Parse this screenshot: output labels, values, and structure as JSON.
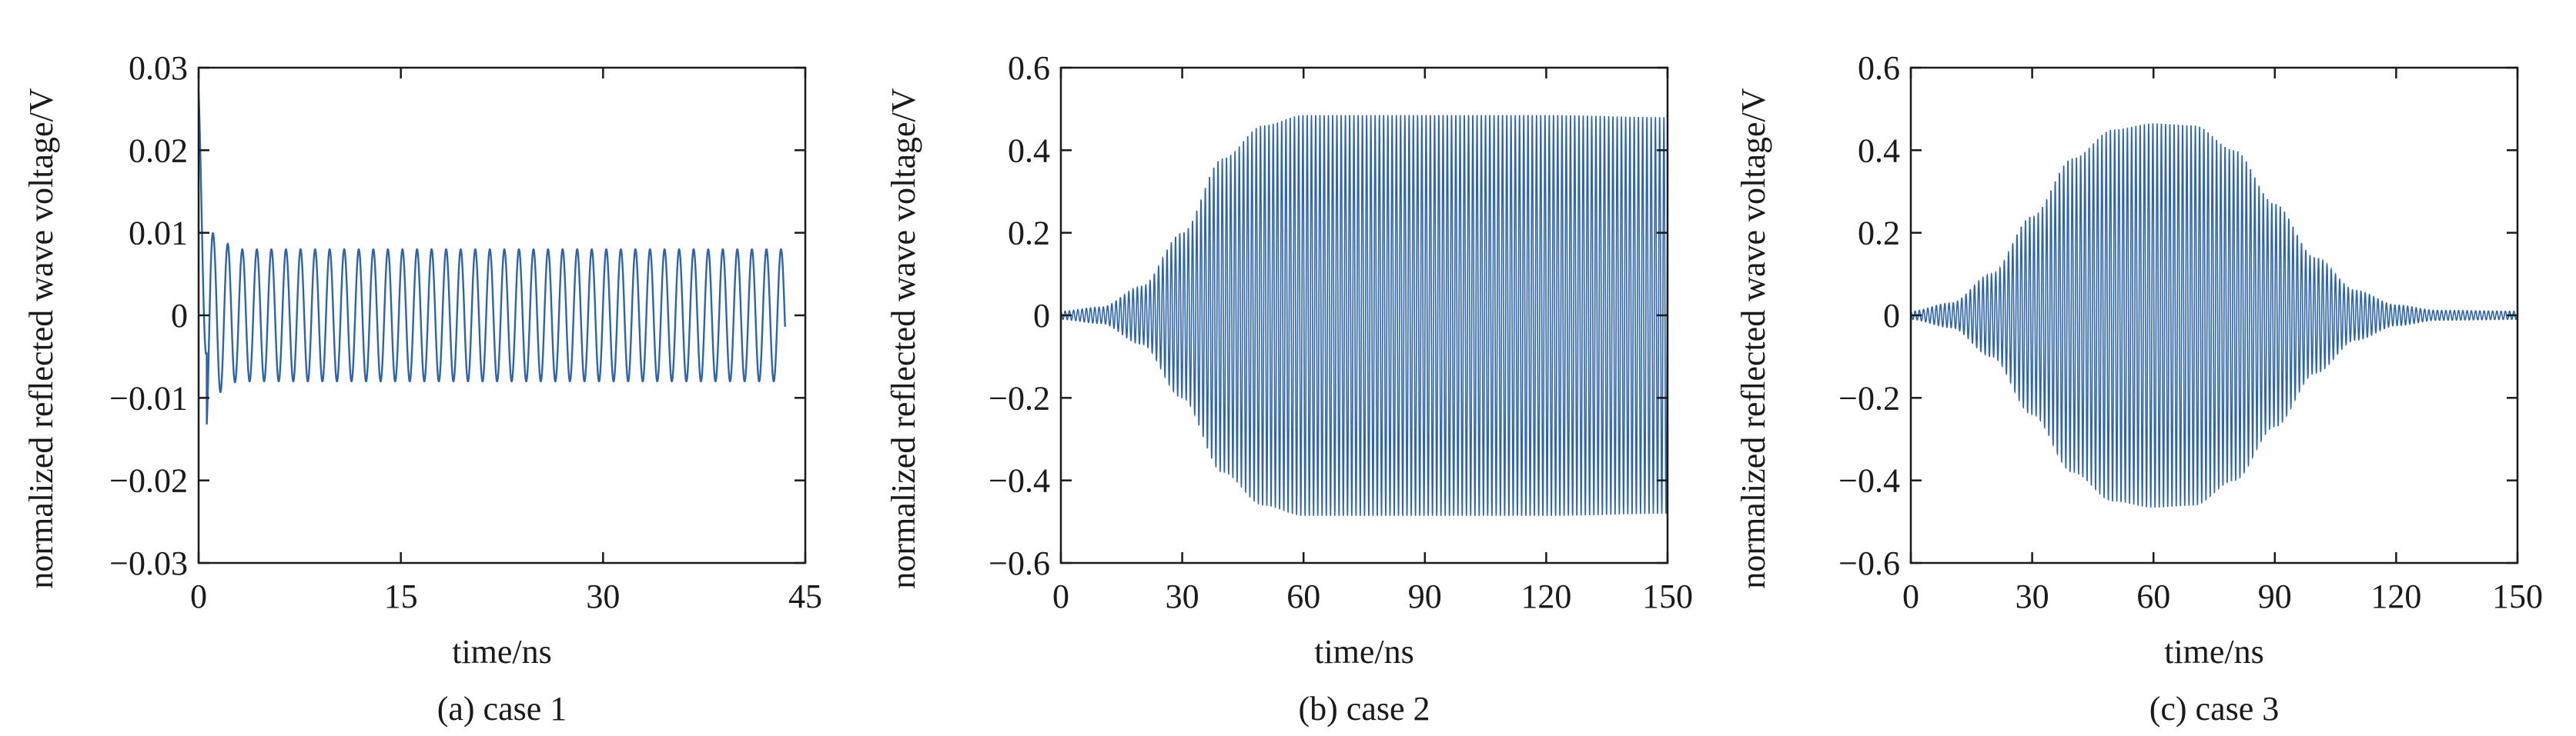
{
  "colors": {
    "line": "#2e64a8",
    "axis": "#1a1a1a"
  },
  "chart_data": [
    {
      "type": "line",
      "caption": "(a) case 1",
      "xlabel": "time/ns",
      "ylabel": "normalized reflected wave voltage/V",
      "xlim": [
        0,
        45
      ],
      "ylim": [
        -0.03,
        0.03
      ],
      "xticks": [
        0,
        15,
        30,
        45
      ],
      "xtick_labels": [
        "0",
        "15",
        "30",
        "45"
      ],
      "yticks": [
        -0.03,
        -0.02,
        -0.01,
        0,
        0.01,
        0.02,
        0.03
      ],
      "ytick_labels": [
        "−0.03",
        "−0.02",
        "−0.01",
        "0",
        "0.01",
        "0.02",
        "0.03"
      ],
      "x_end": 43.5,
      "signal": {
        "description": "initial spike then sustained sinusoidal oscillation",
        "period_ns": 1.08,
        "steady_amplitude": 0.0078,
        "initial_peak": 0.027,
        "initial_trough": -0.0145,
        "envelope": [
          [
            0,
            0.027
          ],
          [
            0.5,
            0.0145
          ],
          [
            1.2,
            0.0095
          ],
          [
            3,
            0.008
          ],
          [
            43.5,
            0.008
          ]
        ]
      }
    },
    {
      "type": "line",
      "caption": "(b) case 2",
      "xlabel": "time/ns",
      "ylabel": "normalized reflected wave voltage/V",
      "xlim": [
        0,
        150
      ],
      "ylim": [
        -0.6,
        0.6
      ],
      "xticks": [
        0,
        30,
        60,
        90,
        120,
        150
      ],
      "xtick_labels": [
        "0",
        "30",
        "60",
        "90",
        "120",
        "150"
      ],
      "yticks": [
        -0.6,
        -0.4,
        -0.2,
        0,
        0.2,
        0.4,
        0.6
      ],
      "ytick_labels": [
        "−0.6",
        "−0.4",
        "−0.2",
        "0",
        "0.2",
        "0.4",
        "0.6"
      ],
      "signal": {
        "description": "oscillation with amplitude growing then saturating",
        "period_ns": 1.05,
        "envelope": [
          [
            0,
            0.01
          ],
          [
            10,
            0.02
          ],
          [
            20,
            0.07
          ],
          [
            30,
            0.2
          ],
          [
            40,
            0.38
          ],
          [
            50,
            0.46
          ],
          [
            60,
            0.485
          ],
          [
            90,
            0.485
          ],
          [
            120,
            0.485
          ],
          [
            150,
            0.48
          ]
        ]
      }
    },
    {
      "type": "line",
      "caption": "(c) case 3",
      "xlabel": "time/ns",
      "ylabel": "normalized reflected wave voltage/V",
      "xlim": [
        0,
        150
      ],
      "ylim": [
        -0.6,
        0.6
      ],
      "xticks": [
        0,
        30,
        60,
        90,
        120,
        150
      ],
      "xtick_labels": [
        "0",
        "30",
        "60",
        "90",
        "120",
        "150"
      ],
      "yticks": [
        -0.6,
        -0.4,
        -0.2,
        0,
        0.2,
        0.4,
        0.6
      ],
      "ytick_labels": [
        "−0.6",
        "−0.4",
        "−0.2",
        "0",
        "0.2",
        "0.4",
        "0.6"
      ],
      "signal": {
        "description": "oscillation with bell-shaped amplitude envelope",
        "period_ns": 1.05,
        "envelope": [
          [
            0,
            0.01
          ],
          [
            10,
            0.03
          ],
          [
            20,
            0.1
          ],
          [
            30,
            0.24
          ],
          [
            40,
            0.38
          ],
          [
            50,
            0.45
          ],
          [
            60,
            0.465
          ],
          [
            70,
            0.46
          ],
          [
            80,
            0.4
          ],
          [
            90,
            0.27
          ],
          [
            100,
            0.14
          ],
          [
            110,
            0.06
          ],
          [
            120,
            0.025
          ],
          [
            130,
            0.012
          ],
          [
            150,
            0.01
          ]
        ]
      }
    }
  ]
}
